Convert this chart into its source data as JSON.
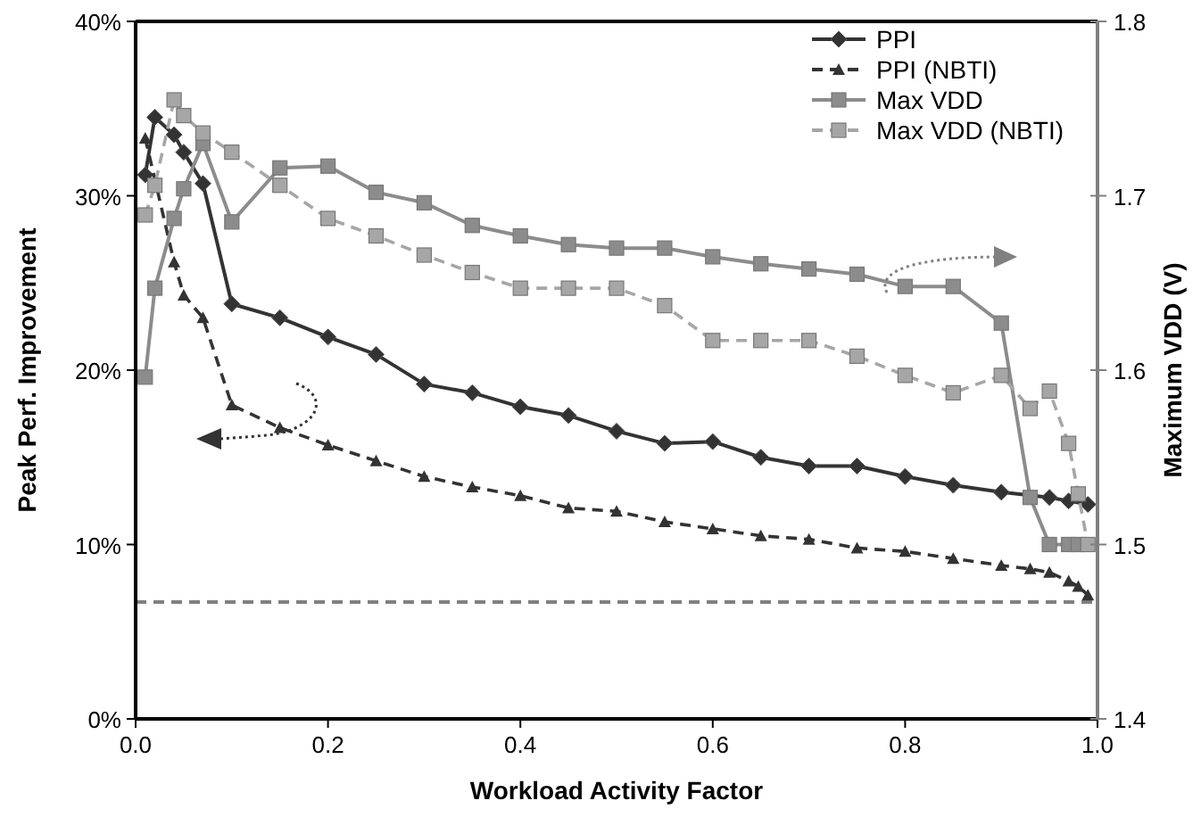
{
  "chart_data": {
    "type": "line",
    "xlabel": "Workload Activity Factor",
    "ylabel": "Peak Perf. Improvement",
    "y2label": "Maximum VDD (V)",
    "xlim": [
      0,
      1
    ],
    "xticks": [
      {
        "value": 0,
        "label": "0.0"
      },
      0.2,
      0.4,
      0.6,
      0.8,
      {
        "value": 1,
        "label": "1.0"
      }
    ],
    "ylim": [
      0,
      40
    ],
    "yticks": [
      {
        "value": 0,
        "label": "0%"
      },
      {
        "value": 10,
        "label": "10%"
      },
      {
        "value": 20,
        "label": "20%"
      },
      {
        "value": 30,
        "label": "30%"
      },
      {
        "value": 40,
        "label": "40%"
      }
    ],
    "y2lim": [
      1.4,
      1.8
    ],
    "y2ticks": [
      1.4,
      1.5,
      1.6,
      1.7,
      1.8
    ],
    "grid": false,
    "legend": "top right",
    "ref_lines": [
      {
        "axis": "y",
        "value": 6.7,
        "color": "#808080",
        "line_style": "dashed"
      }
    ],
    "series": [
      {
        "name": "PPI",
        "color": "#333333",
        "marker": "diamond",
        "line_style": "solid",
        "x": [
          0.01,
          0.02,
          0.04,
          0.05,
          0.07,
          0.1,
          0.15,
          0.2,
          0.25,
          0.3,
          0.35,
          0.4,
          0.45,
          0.5,
          0.55,
          0.6,
          0.65,
          0.7,
          0.75,
          0.8,
          0.85,
          0.9,
          0.95,
          0.97,
          0.99
        ],
        "values": [
          31.2,
          34.5,
          33.5,
          32.5,
          30.7,
          23.8,
          23.0,
          21.9,
          20.9,
          19.2,
          18.7,
          17.9,
          17.4,
          16.5,
          15.8,
          15.9,
          15.0,
          14.5,
          14.5,
          13.9,
          13.4,
          13.0,
          12.7,
          12.5,
          12.3
        ]
      },
      {
        "name": "PPI (NBTI)",
        "color": "#333333",
        "marker": "triangle",
        "line_style": "dashed",
        "x": [
          0.01,
          0.04,
          0.05,
          0.07,
          0.1,
          0.15,
          0.2,
          0.25,
          0.3,
          0.35,
          0.4,
          0.45,
          0.5,
          0.55,
          0.6,
          0.65,
          0.7,
          0.75,
          0.8,
          0.85,
          0.9,
          0.93,
          0.95,
          0.97,
          0.98,
          0.99
        ],
        "values": [
          33.3,
          26.2,
          24.3,
          23.0,
          18.0,
          16.7,
          15.7,
          14.8,
          13.9,
          13.3,
          12.8,
          12.1,
          11.9,
          11.3,
          10.9,
          10.5,
          10.3,
          9.8,
          9.6,
          9.2,
          8.8,
          8.6,
          8.4,
          7.9,
          7.6,
          7.1
        ]
      },
      {
        "name": "Max VDD",
        "color": "#8c8c8c",
        "marker": "square",
        "line_style": "solid",
        "axis": "y2",
        "x": [
          0.01,
          0.02,
          0.04,
          0.05,
          0.07,
          0.1,
          0.15,
          0.2,
          0.25,
          0.3,
          0.35,
          0.4,
          0.45,
          0.5,
          0.55,
          0.6,
          0.65,
          0.7,
          0.75,
          0.8,
          0.85,
          0.9,
          0.93,
          0.95,
          0.97,
          0.98
        ],
        "values": [
          1.596,
          1.647,
          1.687,
          1.704,
          1.73,
          1.685,
          1.716,
          1.717,
          1.702,
          1.696,
          1.683,
          1.677,
          1.672,
          1.67,
          1.67,
          1.665,
          1.661,
          1.658,
          1.655,
          1.648,
          1.648,
          1.627,
          1.527,
          1.5,
          1.5,
          1.5
        ]
      },
      {
        "name": "Max VDD (NBTI)",
        "color": "#a6a6a6",
        "marker": "square",
        "line_style": "dashed",
        "axis": "y2",
        "x": [
          0.01,
          0.02,
          0.04,
          0.05,
          0.07,
          0.1,
          0.15,
          0.2,
          0.25,
          0.3,
          0.35,
          0.4,
          0.45,
          0.5,
          0.55,
          0.6,
          0.65,
          0.7,
          0.75,
          0.8,
          0.85,
          0.9,
          0.93,
          0.95,
          0.97,
          0.98,
          0.99
        ],
        "values": [
          1.689,
          1.706,
          1.755,
          1.746,
          1.736,
          1.725,
          1.706,
          1.687,
          1.677,
          1.666,
          1.656,
          1.647,
          1.647,
          1.647,
          1.637,
          1.617,
          1.617,
          1.617,
          1.608,
          1.597,
          1.587,
          1.597,
          1.578,
          1.588,
          1.558,
          1.529,
          1.5
        ]
      }
    ]
  }
}
